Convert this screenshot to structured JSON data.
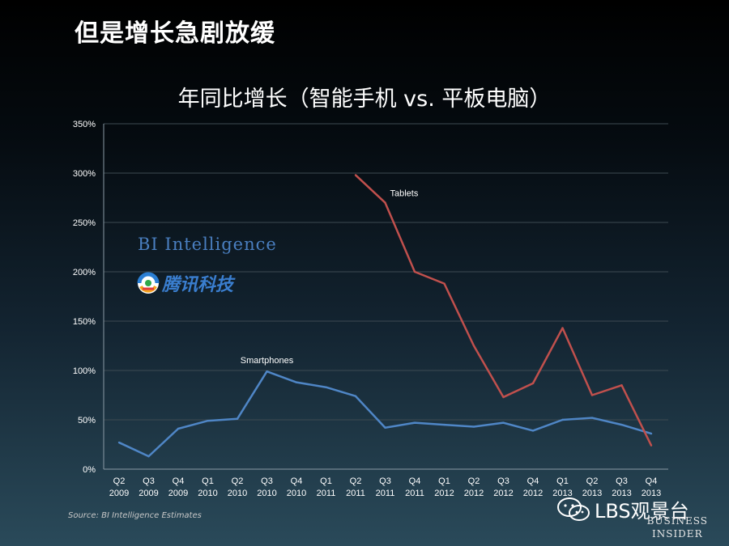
{
  "slide": {
    "title": "但是增长急剧放缓",
    "source": "Source: BI Intelligence Estimates",
    "watermark_bi": "BI Intelligence",
    "watermark_tencent": "腾讯科技",
    "wechat_label": "LBS观景台",
    "logo_line1": "BUSINESS",
    "logo_line2": "INSIDER"
  },
  "chart_data": {
    "type": "line",
    "title": "年同比增长（智能手机 vs. 平板电脑）",
    "categories": [
      "Q2 2009",
      "Q3 2009",
      "Q4 2009",
      "Q1 2010",
      "Q2 2010",
      "Q3 2010",
      "Q4 2010",
      "Q1 2011",
      "Q2 2011",
      "Q3 2011",
      "Q4 2011",
      "Q1 2012",
      "Q2 2012",
      "Q3 2012",
      "Q4 2012",
      "Q1 2013",
      "Q2 2013",
      "Q3 2013",
      "Q4 2013"
    ],
    "ylim": [
      0,
      350
    ],
    "yticks": [
      0,
      50,
      100,
      150,
      200,
      250,
      300,
      350
    ],
    "ytick_labels": [
      "0%",
      "50%",
      "100%",
      "150%",
      "200%",
      "250%",
      "300%",
      "350%"
    ],
    "grid": true,
    "series": [
      {
        "name": "Smartphones",
        "color": "#4f86c6",
        "values": [
          27,
          13,
          41,
          49,
          51,
          99,
          88,
          83,
          74,
          42,
          47,
          45,
          43,
          47,
          39,
          50,
          52,
          45,
          36
        ]
      },
      {
        "name": "Tablets",
        "color": "#c0504d",
        "values": [
          null,
          null,
          null,
          null,
          null,
          null,
          null,
          null,
          298,
          270,
          200,
          188,
          125,
          73,
          87,
          143,
          75,
          85,
          24
        ]
      }
    ]
  }
}
